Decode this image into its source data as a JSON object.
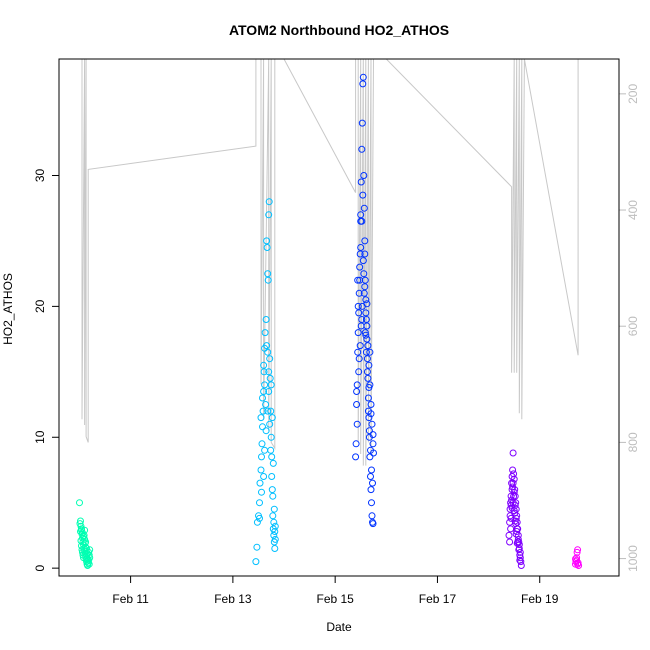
{
  "chart_data": {
    "type": "scatter",
    "title": "ATOM2 Northbound HO2_ATHOS",
    "xlabel": "Date",
    "ylabel": "HO2_ATHOS",
    "x_unit": "day_of_february",
    "xlim": [
      9.6,
      20.55
    ],
    "ylim": [
      -0.6,
      38.9
    ],
    "x_ticks": [
      {
        "value": 11,
        "label": "Feb 11"
      },
      {
        "value": 13,
        "label": "Feb 13"
      },
      {
        "value": 15,
        "label": "Feb 15"
      },
      {
        "value": 17,
        "label": "Feb 17"
      },
      {
        "value": 19,
        "label": "Feb 19"
      }
    ],
    "y_ticks": [
      0,
      10,
      20,
      30
    ],
    "secondary_y": {
      "note": "inverted pressure axis for grey altitude trace",
      "ylim": [
        1030,
        140
      ],
      "ticks": [
        200,
        400,
        600,
        800,
        1000
      ],
      "color": "#bdbdbd"
    },
    "pressure_trace": {
      "color": "#c8c8c8",
      "points": [
        [
          10.05,
          140
        ],
        [
          10.05,
          760
        ],
        [
          10.1,
          140
        ],
        [
          10.1,
          770
        ],
        [
          10.13,
          140
        ],
        [
          10.13,
          790
        ],
        [
          10.17,
          800
        ],
        [
          10.17,
          330
        ],
        [
          13.45,
          290
        ],
        [
          13.45,
          140
        ],
        [
          13.55,
          140
        ],
        [
          13.55,
          700
        ],
        [
          13.6,
          140
        ],
        [
          13.6,
          760
        ],
        [
          13.7,
          140
        ],
        [
          13.7,
          780
        ],
        [
          13.75,
          140
        ],
        [
          13.75,
          800
        ],
        [
          13.82,
          810
        ],
        [
          13.82,
          140
        ],
        [
          14.0,
          140
        ],
        [
          15.4,
          370
        ],
        [
          15.4,
          140
        ],
        [
          15.45,
          140
        ],
        [
          15.45,
          800
        ],
        [
          15.5,
          140
        ],
        [
          15.5,
          820
        ],
        [
          15.55,
          140
        ],
        [
          15.55,
          840
        ],
        [
          15.6,
          140
        ],
        [
          15.6,
          840
        ],
        [
          15.65,
          140
        ],
        [
          15.65,
          800
        ],
        [
          15.7,
          140
        ],
        [
          15.7,
          820
        ],
        [
          15.75,
          140
        ],
        [
          16.0,
          140
        ],
        [
          18.45,
          360
        ],
        [
          18.45,
          680
        ],
        [
          18.5,
          140
        ],
        [
          18.5,
          680
        ],
        [
          18.55,
          140
        ],
        [
          18.55,
          680
        ],
        [
          18.6,
          140
        ],
        [
          18.6,
          750
        ],
        [
          18.65,
          140
        ],
        [
          18.65,
          760
        ],
        [
          18.7,
          140
        ],
        [
          19.75,
          650
        ],
        [
          19.75,
          140
        ]
      ]
    },
    "series": [
      {
        "color": "#00ffb2",
        "points": [
          [
            10.0,
            5.0
          ],
          [
            10.02,
            3.6
          ],
          [
            10.03,
            3.2
          ],
          [
            10.04,
            2.9
          ],
          [
            10.05,
            2.6
          ],
          [
            10.06,
            2.3
          ],
          [
            10.07,
            2.0
          ],
          [
            10.08,
            1.8
          ],
          [
            10.09,
            1.5
          ],
          [
            10.1,
            1.3
          ],
          [
            10.11,
            1.1
          ],
          [
            10.12,
            0.9
          ],
          [
            10.13,
            0.7
          ],
          [
            10.14,
            0.5
          ],
          [
            10.15,
            0.3
          ],
          [
            10.16,
            0.2
          ],
          [
            10.01,
            3.4
          ],
          [
            10.02,
            2.8
          ],
          [
            10.03,
            2.1
          ],
          [
            10.04,
            1.7
          ],
          [
            10.05,
            1.4
          ],
          [
            10.06,
            1.2
          ],
          [
            10.07,
            1.0
          ],
          [
            10.08,
            0.8
          ],
          [
            10.09,
            2.5
          ],
          [
            10.1,
            2.2
          ],
          [
            10.11,
            1.9
          ],
          [
            10.12,
            1.6
          ],
          [
            10.13,
            1.3
          ],
          [
            10.14,
            1.0
          ],
          [
            10.15,
            0.8
          ],
          [
            10.16,
            0.6
          ],
          [
            10.17,
            0.4
          ],
          [
            10.18,
            1.2
          ],
          [
            10.19,
            1.0
          ],
          [
            10.2,
            0.8
          ],
          [
            10.04,
            3.0
          ],
          [
            10.06,
            2.7
          ],
          [
            10.08,
            2.4
          ],
          [
            10.1,
            2.9
          ],
          [
            10.12,
            2.0
          ],
          [
            10.14,
            1.5
          ],
          [
            10.16,
            1.1
          ],
          [
            10.18,
            0.6
          ],
          [
            10.2,
            1.4
          ],
          [
            10.19,
            0.3
          ]
        ]
      },
      {
        "color": "#00bfff",
        "points": [
          [
            13.45,
            0.5
          ],
          [
            13.47,
            1.6
          ],
          [
            13.48,
            3.5
          ],
          [
            13.5,
            4.0
          ],
          [
            13.52,
            5.0
          ],
          [
            13.53,
            6.5
          ],
          [
            13.55,
            7.5
          ],
          [
            13.56,
            8.5
          ],
          [
            13.57,
            9.5
          ],
          [
            13.58,
            10.8
          ],
          [
            13.59,
            12.0
          ],
          [
            13.6,
            13.5
          ],
          [
            13.61,
            15.0
          ],
          [
            13.62,
            16.8
          ],
          [
            13.63,
            18.0
          ],
          [
            13.65,
            19.0
          ],
          [
            13.66,
            25.0
          ],
          [
            13.67,
            24.5
          ],
          [
            13.68,
            22.5
          ],
          [
            13.69,
            22.0
          ],
          [
            13.7,
            27.0
          ],
          [
            13.71,
            28.0
          ],
          [
            13.72,
            16.0
          ],
          [
            13.73,
            14.5
          ],
          [
            13.74,
            12.0
          ],
          [
            13.75,
            10.0
          ],
          [
            13.76,
            8.5
          ],
          [
            13.77,
            6.0
          ],
          [
            13.78,
            4.0
          ],
          [
            13.79,
            3.0
          ],
          [
            13.8,
            2.5
          ],
          [
            13.81,
            2.0
          ],
          [
            13.82,
            1.5
          ],
          [
            13.55,
            11.5
          ],
          [
            13.58,
            13.0
          ],
          [
            13.6,
            15.5
          ],
          [
            13.62,
            14.0
          ],
          [
            13.64,
            12.5
          ],
          [
            13.66,
            17.0
          ],
          [
            13.68,
            16.5
          ],
          [
            13.7,
            15.0
          ],
          [
            13.72,
            11.0
          ],
          [
            13.74,
            9.0
          ],
          [
            13.76,
            7.0
          ],
          [
            13.78,
            5.5
          ],
          [
            13.8,
            3.5
          ],
          [
            13.82,
            2.8
          ],
          [
            13.83,
            3.2
          ],
          [
            13.6,
            7.0
          ],
          [
            13.62,
            9.0
          ],
          [
            13.65,
            10.5
          ],
          [
            13.68,
            12.0
          ],
          [
            13.7,
            13.5
          ],
          [
            13.75,
            14.0
          ],
          [
            13.77,
            11.5
          ],
          [
            13.79,
            8.0
          ],
          [
            13.81,
            4.5
          ],
          [
            13.83,
            2.2
          ],
          [
            13.52,
            3.8
          ],
          [
            13.56,
            5.8
          ]
        ]
      },
      {
        "color": "#0033ff",
        "points": [
          [
            15.4,
            8.5
          ],
          [
            15.41,
            9.5
          ],
          [
            15.42,
            12.5
          ],
          [
            15.43,
            14.0
          ],
          [
            15.44,
            16.5
          ],
          [
            15.45,
            18.0
          ],
          [
            15.46,
            19.5
          ],
          [
            15.47,
            21.0
          ],
          [
            15.48,
            22.0
          ],
          [
            15.49,
            24.0
          ],
          [
            15.5,
            26.5
          ],
          [
            15.51,
            29.5
          ],
          [
            15.52,
            32.0
          ],
          [
            15.53,
            34.0
          ],
          [
            15.54,
            37.0
          ],
          [
            15.55,
            37.5
          ],
          [
            15.56,
            30.0
          ],
          [
            15.57,
            27.5
          ],
          [
            15.58,
            24.0
          ],
          [
            15.59,
            22.0
          ],
          [
            15.6,
            20.5
          ],
          [
            15.61,
            19.0
          ],
          [
            15.62,
            17.5
          ],
          [
            15.63,
            16.0
          ],
          [
            15.64,
            14.5
          ],
          [
            15.65,
            13.0
          ],
          [
            15.66,
            11.5
          ],
          [
            15.67,
            10.0
          ],
          [
            15.68,
            8.5
          ],
          [
            15.69,
            7.0
          ],
          [
            15.7,
            6.0
          ],
          [
            15.71,
            5.0
          ],
          [
            15.72,
            4.0
          ],
          [
            15.73,
            3.5
          ],
          [
            15.74,
            3.4
          ],
          [
            15.45,
            20.0
          ],
          [
            15.48,
            23.0
          ],
          [
            15.5,
            27.0
          ],
          [
            15.52,
            26.5
          ],
          [
            15.55,
            23.5
          ],
          [
            15.58,
            21.5
          ],
          [
            15.6,
            19.5
          ],
          [
            15.62,
            18.5
          ],
          [
            15.64,
            17.0
          ],
          [
            15.66,
            15.5
          ],
          [
            15.68,
            14.0
          ],
          [
            15.7,
            12.5
          ],
          [
            15.72,
            11.0
          ],
          [
            15.74,
            9.5
          ],
          [
            15.75,
            8.8
          ],
          [
            15.43,
            11.0
          ],
          [
            15.46,
            15.0
          ],
          [
            15.49,
            17.0
          ],
          [
            15.51,
            18.5
          ],
          [
            15.53,
            20.0
          ],
          [
            15.56,
            22.5
          ],
          [
            15.59,
            18.0
          ],
          [
            15.61,
            16.5
          ],
          [
            15.63,
            15.0
          ],
          [
            15.65,
            12.0
          ],
          [
            15.67,
            10.5
          ],
          [
            15.69,
            9.0
          ],
          [
            15.71,
            7.5
          ],
          [
            15.73,
            6.5
          ],
          [
            15.42,
            13.5
          ],
          [
            15.47,
            16.0
          ],
          [
            15.52,
            19.0
          ],
          [
            15.57,
            21.0
          ],
          [
            15.6,
            17.8
          ],
          [
            15.66,
            13.8
          ],
          [
            15.7,
            11.8
          ],
          [
            15.74,
            10.2
          ],
          [
            15.44,
            22.0
          ],
          [
            15.5,
            24.5
          ],
          [
            15.54,
            28.5
          ],
          [
            15.58,
            25.0
          ],
          [
            15.62,
            20.2
          ],
          [
            15.68,
            16.5
          ]
        ]
      },
      {
        "color": "#7f00ff",
        "points": [
          [
            18.4,
            2.5
          ],
          [
            18.41,
            3.5
          ],
          [
            18.42,
            4.5
          ],
          [
            18.43,
            5.0
          ],
          [
            18.44,
            5.5
          ],
          [
            18.45,
            6.5
          ],
          [
            18.46,
            7.0
          ],
          [
            18.47,
            7.5
          ],
          [
            18.48,
            8.8
          ],
          [
            18.49,
            7.2
          ],
          [
            18.5,
            6.8
          ],
          [
            18.51,
            6.0
          ],
          [
            18.52,
            5.5
          ],
          [
            18.53,
            5.0
          ],
          [
            18.54,
            4.5
          ],
          [
            18.55,
            4.0
          ],
          [
            18.56,
            3.5
          ],
          [
            18.57,
            3.0
          ],
          [
            18.58,
            2.5
          ],
          [
            18.59,
            2.0
          ],
          [
            18.6,
            1.5
          ],
          [
            18.61,
            1.0
          ],
          [
            18.62,
            0.8
          ],
          [
            18.63,
            0.5
          ],
          [
            18.64,
            0.2
          ],
          [
            18.42,
            4.0
          ],
          [
            18.44,
            4.8
          ],
          [
            18.46,
            6.0
          ],
          [
            18.48,
            6.5
          ],
          [
            18.5,
            5.8
          ],
          [
            18.52,
            4.8
          ],
          [
            18.54,
            3.8
          ],
          [
            18.56,
            3.0
          ],
          [
            18.58,
            2.2
          ],
          [
            18.6,
            1.8
          ],
          [
            18.62,
            1.2
          ],
          [
            18.43,
            3.0
          ],
          [
            18.45,
            5.2
          ],
          [
            18.47,
            6.2
          ],
          [
            18.49,
            5.5
          ],
          [
            18.51,
            4.2
          ],
          [
            18.53,
            3.4
          ],
          [
            18.55,
            2.8
          ],
          [
            18.57,
            2.0
          ],
          [
            18.59,
            1.4
          ],
          [
            18.61,
            0.6
          ],
          [
            18.41,
            2.0
          ],
          [
            18.44,
            3.8
          ],
          [
            18.46,
            4.6
          ],
          [
            18.48,
            5.0
          ],
          [
            18.5,
            4.4
          ],
          [
            18.52,
            3.6
          ],
          [
            18.54,
            2.6
          ],
          [
            18.56,
            1.9
          ]
        ]
      },
      {
        "color": "#ff00ff",
        "points": [
          [
            19.7,
            0.3
          ],
          [
            19.71,
            0.5
          ],
          [
            19.72,
            0.8
          ],
          [
            19.73,
            1.2
          ],
          [
            19.74,
            1.4
          ],
          [
            19.75,
            0.4
          ],
          [
            19.76,
            0.2
          ],
          [
            19.72,
            0.6
          ],
          [
            19.74,
            0.3
          ],
          [
            19.7,
            0.7
          ]
        ]
      }
    ]
  }
}
